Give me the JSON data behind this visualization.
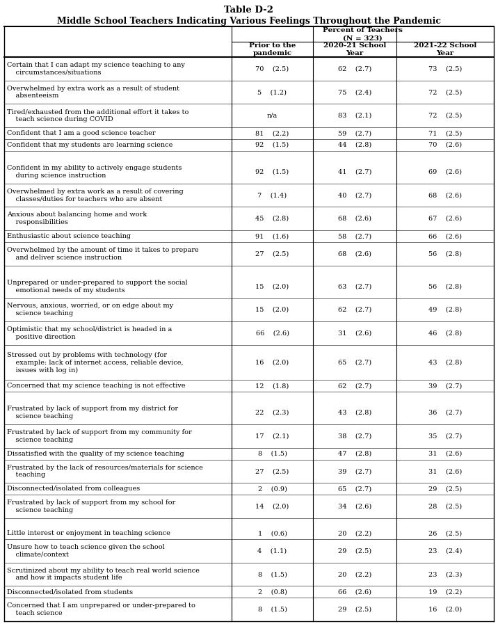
{
  "title_line1": "Table D-2",
  "title_line2": "Middle School Teachers Indicating Various Feelings Throughout the Pandemic",
  "col_headers": [
    "Prior to the\npandemic",
    "2020-21 School\nYear",
    "2021-22 School\nYear"
  ],
  "rows": [
    {
      "label": "Certain that I can adapt my science teaching to any\n    circumstances/situations",
      "prior": "70    (2.5)",
      "y2021": "62    (2.7)",
      "y2022": "73    (2.5)",
      "blank_before": false,
      "label_lines": 2
    },
    {
      "label": "Overwhelmed by extra work as a result of student\n    absenteeism",
      "prior": "5    (1.2)",
      "y2021": "75    (2.4)",
      "y2022": "72    (2.5)",
      "blank_before": false,
      "label_lines": 2
    },
    {
      "label": "Tired/exhausted from the additional effort it takes to\n    teach science during COVID",
      "prior": "n/a",
      "y2021": "83    (2.1)",
      "y2022": "72    (2.5)",
      "blank_before": false,
      "label_lines": 2
    },
    {
      "label": "Confident that I am a good science teacher",
      "prior": "81    (2.2)",
      "y2021": "59    (2.7)",
      "y2022": "71    (2.5)",
      "blank_before": false,
      "label_lines": 1
    },
    {
      "label": "Confident that my students are learning science",
      "prior": "92    (1.5)",
      "y2021": "44    (2.8)",
      "y2022": "70    (2.6)",
      "blank_before": false,
      "label_lines": 1
    },
    {
      "label": "Confident in my ability to actively engage students\n    during science instruction",
      "prior": "92    (1.5)",
      "y2021": "41    (2.7)",
      "y2022": "69    (2.6)",
      "blank_before": true,
      "label_lines": 2
    },
    {
      "label": "Overwhelmed by extra work as a result of covering\n    classes/duties for teachers who are absent",
      "prior": "7    (1.4)",
      "y2021": "40    (2.7)",
      "y2022": "68    (2.6)",
      "blank_before": false,
      "label_lines": 2
    },
    {
      "label": "Anxious about balancing home and work\n    responsibilities",
      "prior": "45    (2.8)",
      "y2021": "68    (2.6)",
      "y2022": "67    (2.6)",
      "blank_before": false,
      "label_lines": 2
    },
    {
      "label": "Enthusiastic about science teaching",
      "prior": "91    (1.6)",
      "y2021": "58    (2.7)",
      "y2022": "66    (2.6)",
      "blank_before": false,
      "label_lines": 1
    },
    {
      "label": "Overwhelmed by the amount of time it takes to prepare\n    and deliver science instruction",
      "prior": "27    (2.5)",
      "y2021": "68    (2.6)",
      "y2022": "56    (2.8)",
      "blank_before": false,
      "label_lines": 2
    },
    {
      "label": "Unprepared or under-prepared to support the social\n    emotional needs of my students",
      "prior": "15    (2.0)",
      "y2021": "63    (2.7)",
      "y2022": "56    (2.8)",
      "blank_before": true,
      "label_lines": 2
    },
    {
      "label": "Nervous, anxious, worried, or on edge about my\n    science teaching",
      "prior": "15    (2.0)",
      "y2021": "62    (2.7)",
      "y2022": "49    (2.8)",
      "blank_before": false,
      "label_lines": 2
    },
    {
      "label": "Optimistic that my school/district is headed in a\n    positive direction",
      "prior": "66    (2.6)",
      "y2021": "31    (2.6)",
      "y2022": "46    (2.8)",
      "blank_before": false,
      "label_lines": 2
    },
    {
      "label": "Stressed out by problems with technology (for\n    example: lack of internet access, reliable device,\n    issues with log in)",
      "prior": "16    (2.0)",
      "y2021": "65    (2.7)",
      "y2022": "43    (2.8)",
      "blank_before": false,
      "label_lines": 3
    },
    {
      "label": "Concerned that my science teaching is not effective",
      "prior": "12    (1.8)",
      "y2021": "62    (2.7)",
      "y2022": "39    (2.7)",
      "blank_before": false,
      "label_lines": 1
    },
    {
      "label": "Frustrated by lack of support from my district for\n    science teaching",
      "prior": "22    (2.3)",
      "y2021": "43    (2.8)",
      "y2022": "36    (2.7)",
      "blank_before": true,
      "label_lines": 2
    },
    {
      "label": "Frustrated by lack of support from my community for\n    science teaching",
      "prior": "17    (2.1)",
      "y2021": "38    (2.7)",
      "y2022": "35    (2.7)",
      "blank_before": false,
      "label_lines": 2
    },
    {
      "label": "Dissatisfied with the quality of my science teaching",
      "prior": "8    (1.5)",
      "y2021": "47    (2.8)",
      "y2022": "31    (2.6)",
      "blank_before": false,
      "label_lines": 1
    },
    {
      "label": "Frustrated by the lack of resources/materials for science\n    teaching",
      "prior": "27    (2.5)",
      "y2021": "39    (2.7)",
      "y2022": "31    (2.6)",
      "blank_before": false,
      "label_lines": 2
    },
    {
      "label": "Disconnected/isolated from colleagues",
      "prior": "2    (0.9)",
      "y2021": "65    (2.7)",
      "y2022": "29    (2.5)",
      "blank_before": false,
      "label_lines": 1
    },
    {
      "label": "Frustrated by lack of support from my school for\n    science teaching",
      "prior": "14    (2.0)",
      "y2021": "34    (2.6)",
      "y2022": "28    (2.5)",
      "blank_before": false,
      "label_lines": 2
    },
    {
      "label": "Little interest or enjoyment in teaching science",
      "prior": "1    (0.6)",
      "y2021": "20    (2.2)",
      "y2022": "26    (2.5)",
      "blank_before": true,
      "label_lines": 1
    },
    {
      "label": "Unsure how to teach science given the school\n    climate/context",
      "prior": "4    (1.1)",
      "y2021": "29    (2.5)",
      "y2022": "23    (2.4)",
      "blank_before": false,
      "label_lines": 2
    },
    {
      "label": "Scrutinized about my ability to teach real world science\n    and how it impacts student life",
      "prior": "8    (1.5)",
      "y2021": "20    (2.2)",
      "y2022": "23    (2.3)",
      "blank_before": false,
      "label_lines": 2
    },
    {
      "label": "Disconnected/isolated from students",
      "prior": "2    (0.8)",
      "y2021": "66    (2.6)",
      "y2022": "19    (2.2)",
      "blank_before": false,
      "label_lines": 1
    },
    {
      "label": "Concerned that I am unprepared or under-prepared to\n    teach science",
      "prior": "8    (1.5)",
      "y2021": "29    (2.5)",
      "y2022": "16    (2.0)",
      "blank_before": false,
      "label_lines": 2
    }
  ],
  "font_size": 7.0,
  "title1_size": 9.5,
  "title2_size": 9.0
}
